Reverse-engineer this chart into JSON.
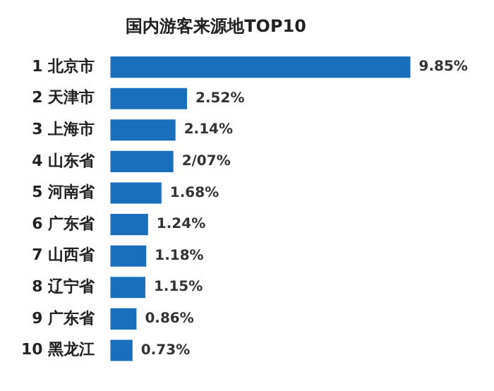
{
  "chart_data": {
    "type": "bar",
    "orientation": "horizontal",
    "title": "国内游客来源地TOP10",
    "categories": [
      "1 北京市",
      "2 天津市",
      "3 上海市",
      "4 山东省",
      "5 河南省",
      "6 广东省",
      "7 山西省",
      "8 辽宁省",
      "9 广东省",
      "10 黑龙江"
    ],
    "values": [
      9.85,
      2.52,
      2.14,
      2.07,
      1.68,
      1.24,
      1.18,
      1.15,
      0.86,
      0.73
    ],
    "value_labels": [
      "9.85%",
      "2.52%",
      "2.14%",
      "2/07%",
      "1.68%",
      "1.24%",
      "1.18%",
      "1.15%",
      "0.86%",
      "0.73%"
    ],
    "color": "#1a6fbd",
    "legend": false
  }
}
